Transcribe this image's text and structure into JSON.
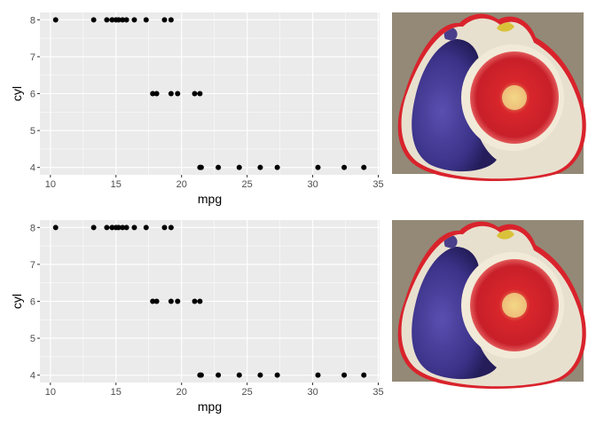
{
  "colors": {
    "panel_bg": "#ebebeb",
    "grid_major": "#ffffff",
    "point": "#000000",
    "tick_text": "#4d4d4d"
  },
  "chart_data": [
    {
      "type": "scatter",
      "xlabel": "mpg",
      "ylabel": "cyl",
      "xlim": [
        9.2,
        35.1
      ],
      "ylim": [
        3.8,
        8.2
      ],
      "xticks": [
        10,
        15,
        20,
        25,
        30,
        35
      ],
      "yticks": [
        4,
        5,
        6,
        7,
        8
      ],
      "grid": true,
      "points": [
        [
          10.4,
          8
        ],
        [
          13.3,
          8
        ],
        [
          14.3,
          8
        ],
        [
          14.7,
          8
        ],
        [
          15.0,
          8
        ],
        [
          15.2,
          8
        ],
        [
          15.5,
          8
        ],
        [
          15.8,
          8
        ],
        [
          16.4,
          8
        ],
        [
          17.3,
          8
        ],
        [
          18.7,
          8
        ],
        [
          19.2,
          8
        ],
        [
          17.8,
          6
        ],
        [
          18.1,
          6
        ],
        [
          19.2,
          6
        ],
        [
          19.7,
          6
        ],
        [
          21.0,
          6
        ],
        [
          21.4,
          6
        ],
        [
          21.4,
          4
        ],
        [
          21.5,
          4
        ],
        [
          22.8,
          4
        ],
        [
          24.4,
          4
        ],
        [
          26.0,
          4
        ],
        [
          27.3,
          4
        ],
        [
          30.4,
          4
        ],
        [
          32.4,
          4
        ],
        [
          33.9,
          4
        ]
      ]
    },
    {
      "type": "scatter",
      "xlabel": "mpg",
      "ylabel": "cyl",
      "xlim": [
        9.2,
        35.1
      ],
      "ylim": [
        3.8,
        8.2
      ],
      "xticks": [
        10,
        15,
        20,
        25,
        30,
        35
      ],
      "yticks": [
        4,
        5,
        6,
        7,
        8
      ],
      "grid": true,
      "points": [
        [
          10.4,
          8
        ],
        [
          13.3,
          8
        ],
        [
          14.3,
          8
        ],
        [
          14.7,
          8
        ],
        [
          15.0,
          8
        ],
        [
          15.2,
          8
        ],
        [
          15.5,
          8
        ],
        [
          15.8,
          8
        ],
        [
          16.4,
          8
        ],
        [
          17.3,
          8
        ],
        [
          18.7,
          8
        ],
        [
          19.2,
          8
        ],
        [
          17.8,
          6
        ],
        [
          18.1,
          6
        ],
        [
          19.2,
          6
        ],
        [
          19.7,
          6
        ],
        [
          21.0,
          6
        ],
        [
          21.4,
          6
        ],
        [
          21.4,
          4
        ],
        [
          21.5,
          4
        ],
        [
          22.8,
          4
        ],
        [
          24.4,
          4
        ],
        [
          26.0,
          4
        ],
        [
          27.3,
          4
        ],
        [
          30.4,
          4
        ],
        [
          32.4,
          4
        ],
        [
          33.9,
          4
        ]
      ]
    }
  ],
  "images": [
    {
      "icon": "embroidered-fig-image"
    },
    {
      "icon": "embroidered-fig-image"
    }
  ]
}
